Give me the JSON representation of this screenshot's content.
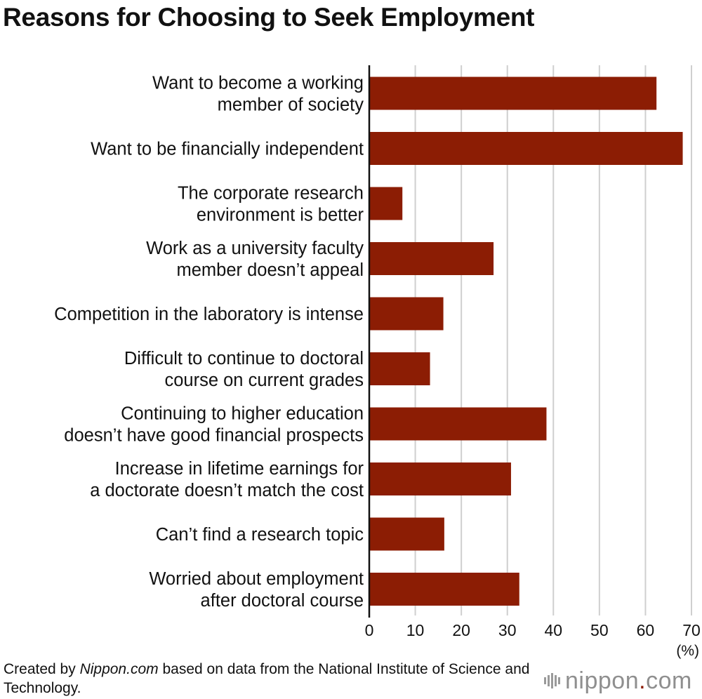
{
  "title": "Reasons for Choosing to Seek Employment",
  "footer": {
    "prefix": "Created by ",
    "source_name": "Nippon.com",
    "suffix": " based on data from the National Institute of Science and Technology."
  },
  "logo": {
    "name": "nippon",
    "dot": ".",
    "domain": "com"
  },
  "colors": {
    "bar": "#8c1d04",
    "grid": "#cfcfcf",
    "axis": "#111111"
  },
  "chart_data": {
    "type": "bar",
    "orientation": "horizontal",
    "categories": [
      [
        "Want to become a working",
        "member of society"
      ],
      [
        "Want to be financially independent"
      ],
      [
        "The corporate research",
        "environment is better"
      ],
      [
        "Work as a university faculty",
        "member doesn’t appeal"
      ],
      [
        "Competition in the laboratory is intense"
      ],
      [
        "Difficult to continue to doctoral",
        "course on current grades"
      ],
      [
        "Continuing to higher education",
        "doesn’t have good financial prospects"
      ],
      [
        "Increase in lifetime earnings for",
        "a doctorate doesn’t match the cost"
      ],
      [
        "Can’t find a research topic"
      ],
      [
        "Worried about employment",
        "after doctoral course"
      ]
    ],
    "values": [
      62.4,
      68.1,
      7.2,
      27.0,
      16.1,
      13.2,
      38.5,
      30.8,
      16.3,
      32.6
    ],
    "xlim": [
      0,
      70
    ],
    "xticks": [
      0,
      10,
      20,
      30,
      40,
      50,
      60,
      70
    ],
    "unit": "(%)",
    "grid": true,
    "legend": "none"
  }
}
